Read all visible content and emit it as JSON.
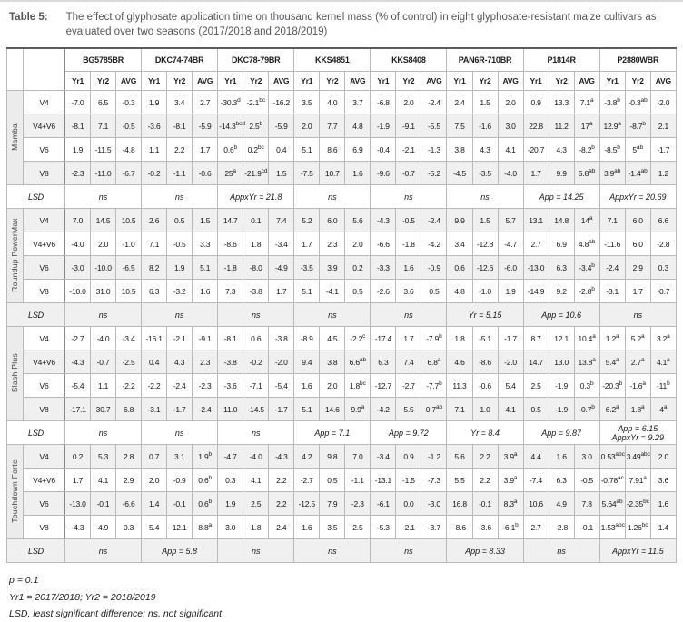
{
  "title": {
    "label": "Table 5:",
    "text": "The effect of glyphosate application time on thousand kernel mass (% of control) in eight glyphosate-resistant maize cultivars as evaluated over two seasons (2017/2018 and 2018/2019)"
  },
  "table": {
    "cultivars": [
      "BG5785BR",
      "DKC74-74BR",
      "DKC78-79BR",
      "KKS4851",
      "KKS8408",
      "PAN6R-710BR",
      "P1814R",
      "P2880WBR"
    ],
    "year_headers": [
      "Yr1",
      "Yr2",
      "AVG"
    ],
    "lsd_label": "LSD",
    "sections": [
      {
        "name": "Mamba",
        "rows": [
          {
            "label": "V4",
            "values": [
              "-7.0",
              "6.5",
              "-0.3",
              "1.9",
              "3.4",
              "2.7",
              "-30.3d",
              "-2.1bc",
              "-16.2",
              "3.5",
              "4.0",
              "3.7",
              "-6.8",
              "2.0",
              "-2.4",
              "2.4",
              "1.5",
              "2.0",
              "0.9",
              "13.3",
              "7.1a",
              "-3.8b",
              "-0.3ab",
              "-2.0"
            ]
          },
          {
            "label": "V4+V6",
            "values": [
              "-8.1",
              "7.1",
              "-0.5",
              "-3.6",
              "-8.1",
              "-5.9",
              "-14.3bcd",
              "2.5b",
              "-5.9",
              "2.0",
              "7.7",
              "4.8",
              "-1.9",
              "-9.1",
              "-5.5",
              "7.5",
              "-1.6",
              "3.0",
              "22.8",
              "11.2",
              "17a",
              "12.9a",
              "-8.7b",
              "2.1"
            ]
          },
          {
            "label": "V6",
            "values": [
              "1.9",
              "-11.5",
              "-4.8",
              "1.1",
              "2.2",
              "1.7",
              "0.6b",
              "0.2bc",
              "0.4",
              "5.1",
              "8.6",
              "6.9",
              "-0.4",
              "-2.1",
              "-1.3",
              "3.8",
              "4.3",
              "4.1",
              "-20.7",
              "4.3",
              "-8.2b",
              "-8.5b",
              "5ab",
              "-1.7"
            ]
          },
          {
            "label": "V8",
            "values": [
              "-2.3",
              "-11.0",
              "-6.7",
              "-0.2",
              "-1.1",
              "-0.6",
              "25a",
              "-21.9cd",
              "1.5",
              "-7.5",
              "10.7",
              "1.6",
              "-9.6",
              "-0.7",
              "-5.2",
              "-4.5",
              "-3.5",
              "-4.0",
              "1.7",
              "9.9",
              "5.8ab",
              "3.9ab",
              "-1.4ab",
              "1.2"
            ]
          }
        ],
        "lsd": [
          "ns",
          "ns",
          "AppxYr = 21.8",
          "ns",
          "ns",
          "ns",
          "App = 14.25",
          "AppxYr = 20.69"
        ]
      },
      {
        "name": "Roundup PowerMax",
        "rows": [
          {
            "label": "V4",
            "values": [
              "7.0",
              "14.5",
              "10.5",
              "2.6",
              "0.5",
              "1.5",
              "14.7",
              "0.1",
              "7.4",
              "5.2",
              "6.0",
              "5.6",
              "-4.3",
              "-0.5",
              "-2.4",
              "9.9",
              "1.5",
              "5.7",
              "13.1",
              "14.8",
              "14a",
              "7.1",
              "6.0",
              "6.6"
            ]
          },
          {
            "label": "V4+V6",
            "values": [
              "-4.0",
              "2.0",
              "-1.0",
              "7.1",
              "-0.5",
              "3.3",
              "-8.6",
              "1.8",
              "-3.4",
              "1.7",
              "2.3",
              "2.0",
              "-6.6",
              "-1.8",
              "-4.2",
              "3.4",
              "-12.8",
              "-4.7",
              "2.7",
              "6.9",
              "4.8ab",
              "-11.6",
              "6.0",
              "-2.8"
            ]
          },
          {
            "label": "V6",
            "values": [
              "-3.0",
              "-10.0",
              "-6.5",
              "8.2",
              "1.9",
              "5.1",
              "-1.8",
              "-8.0",
              "-4.9",
              "-3.5",
              "3.9",
              "0.2",
              "-3.3",
              "1.6",
              "-0.9",
              "0.6",
              "-12.6",
              "-6.0",
              "-13.0",
              "6.3",
              "-3.4b",
              "-2.4",
              "2.9",
              "0.3"
            ]
          },
          {
            "label": "V8",
            "values": [
              "-10.0",
              "31.0",
              "10.5",
              "6.3",
              "-3.2",
              "1.6",
              "7.3",
              "-3.8",
              "1.7",
              "5.1",
              "-4.1",
              "0.5",
              "-2.6",
              "3.6",
              "0.5",
              "4.8",
              "-1.0",
              "1.9",
              "-14.9",
              "9.2",
              "-2.8b",
              "-3.1",
              "1.7",
              "-0.7"
            ]
          }
        ],
        "lsd": [
          "ns",
          "ns",
          "ns",
          "ns",
          "ns",
          "Yr = 5.15",
          "App = 10.6",
          "ns"
        ]
      },
      {
        "name": "Slash Plus",
        "rows": [
          {
            "label": "V4",
            "values": [
              "-2.7",
              "-4.0",
              "-3.4",
              "-16.1",
              "-2.1",
              "-9.1",
              "-8.1",
              "0.6",
              "-3.8",
              "-8.9",
              "4.5",
              "-2.2c",
              "-17.4",
              "1.7",
              "-7.9b",
              "1.8",
              "-5.1",
              "-1.7",
              "8.7",
              "12.1",
              "10.4a",
              "1.2a",
              "5.2a",
              "3.2a"
            ]
          },
          {
            "label": "V4+V6",
            "values": [
              "-4.3",
              "-0.7",
              "-2.5",
              "0.4",
              "4.3",
              "2.3",
              "-3.8",
              "-0.2",
              "-2.0",
              "9.4",
              "3.8",
              "6.6ab",
              "6.3",
              "7.4",
              "6.8a",
              "4.6",
              "-8.6",
              "-2.0",
              "14.7",
              "13.0",
              "13.8a",
              "5.4a",
              "2.7a",
              "4.1a"
            ]
          },
          {
            "label": "V6",
            "values": [
              "-5.4",
              "1.1",
              "-2.2",
              "-2.2",
              "-2.4",
              "-2.3",
              "-3.6",
              "-7.1",
              "-5.4",
              "1.6",
              "2.0",
              "1.8bc",
              "-12.7",
              "-2.7",
              "-7.7b",
              "11.3",
              "-0.6",
              "5.4",
              "2.5",
              "-1.9",
              "0.3b",
              "-20.3b",
              "-1.6a",
              "-11b"
            ]
          },
          {
            "label": "V8",
            "values": [
              "-17.1",
              "30.7",
              "6.8",
              "-3.1",
              "-1.7",
              "-2.4",
              "11.0",
              "-14.5",
              "-1.7",
              "5.1",
              "14.6",
              "9.9a",
              "-4.2",
              "5.5",
              "0.7ab",
              "7.1",
              "1.0",
              "4.1",
              "0.5",
              "-1.9",
              "-0.7b",
              "6.2a",
              "1.8a",
              "4a"
            ]
          }
        ],
        "lsd": [
          "ns",
          "ns",
          "ns",
          "App = 7.1",
          "App = 9.72",
          "Yr = 8.4",
          "App = 9.87",
          "App = 6.15\nAppxYr = 9.29"
        ]
      },
      {
        "name": "Touchdown Forte",
        "rows": [
          {
            "label": "V4",
            "values": [
              "0.2",
              "5.3",
              "2.8",
              "0.7",
              "3.1",
              "1.9b",
              "-4.7",
              "-4.0",
              "-4.3",
              "4.2",
              "9.8",
              "7.0",
              "-3.4",
              "0.9",
              "-1.2",
              "5.6",
              "2.2",
              "3.9a",
              "4.4",
              "1.6",
              "3.0",
              "0.53abc",
              "3.49abc",
              "2.0"
            ]
          },
          {
            "label": "V4+V6",
            "values": [
              "1.7",
              "4.1",
              "2.9",
              "2.0",
              "-0.9",
              "0.6b",
              "0.3",
              "4.1",
              "2.2",
              "-2.7",
              "0.5",
              "-1.1",
              "-13.1",
              "-1.5",
              "-7.3",
              "5.5",
              "2.2",
              "3.9a",
              "-7.4",
              "6.3",
              "-0.5",
              "-0.78ac",
              "7.91a",
              "3.6"
            ]
          },
          {
            "label": "V6",
            "values": [
              "-13.0",
              "-0.1",
              "-6.6",
              "1.4",
              "-0.1",
              "0.6b",
              "1.9",
              "2.5",
              "2.2",
              "-12.5",
              "7.9",
              "-2.3",
              "-6.1",
              "0.0",
              "-3.0",
              "16.8",
              "-0.1",
              "8.3a",
              "10.6",
              "4.9",
              "7.8",
              "5.64ab",
              "-2.35bc",
              "1.6"
            ]
          },
          {
            "label": "V8",
            "values": [
              "-4.3",
              "4.9",
              "0.3",
              "5.4",
              "12.1",
              "8.8a",
              "3.0",
              "1.8",
              "2.4",
              "1.6",
              "3.5",
              "2.5",
              "-5.3",
              "-2.1",
              "-3.7",
              "-8.6",
              "-3.6",
              "-6.1b",
              "2.7",
              "-2.8",
              "-0.1",
              "1.53abc",
              "1.26bc",
              "1.4"
            ]
          }
        ],
        "lsd": [
          "ns",
          "App = 5.8",
          "ns",
          "ns",
          "ns",
          "App = 8.33",
          "ns",
          "AppxYr = 11.5"
        ]
      }
    ]
  },
  "footnotes": [
    "p = 0.1",
    "Yr1 = 2017/2018; Yr2 = 2018/2019",
    "LSD, least significant difference; ns, not significant"
  ]
}
